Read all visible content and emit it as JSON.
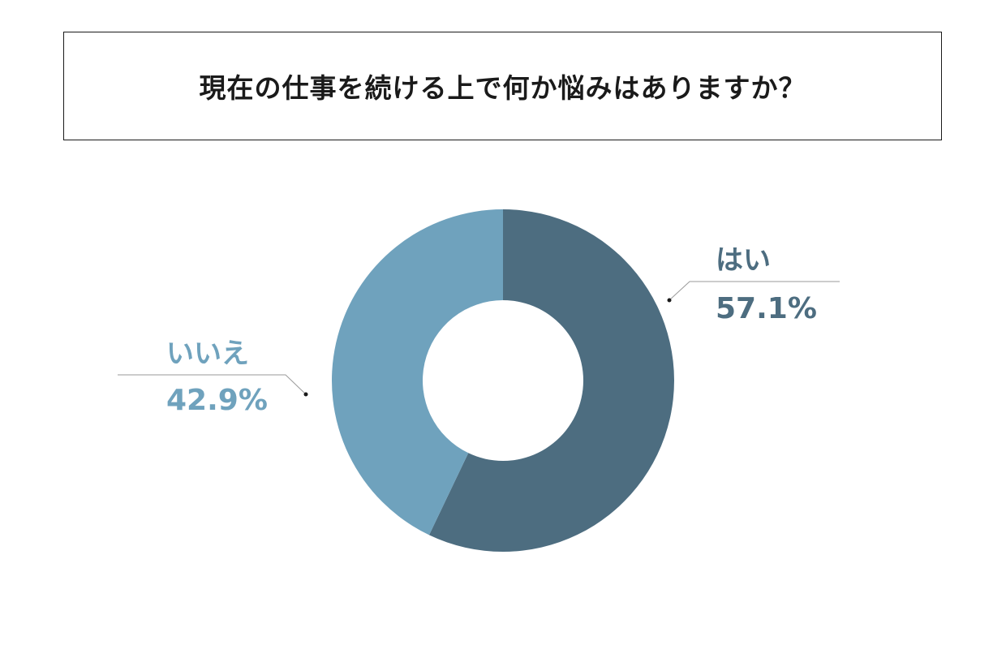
{
  "title": "現在の仕事を続ける上で何か悩みはありますか？",
  "chart_data": {
    "type": "pie",
    "variant": "donut",
    "title": "現在の仕事を続ける上で何か悩みはありますか？",
    "slices": [
      {
        "label": "はい",
        "value": 57.1,
        "display": "57.1%",
        "color": "#4d6d80"
      },
      {
        "label": "いいえ",
        "value": 42.9,
        "display": "42.9%",
        "color": "#6fa2bd"
      }
    ],
    "start": "top",
    "direction": "clockwise",
    "legend": "none"
  }
}
